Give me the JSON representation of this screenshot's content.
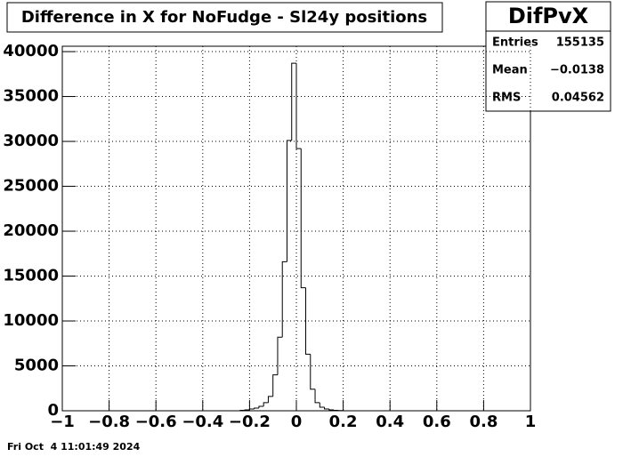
{
  "chart_data": {
    "type": "histogram",
    "title": "Difference in X for NoFudge - Sl24y positions",
    "bins": [
      -0.24,
      -0.22,
      -0.2,
      -0.18,
      -0.16,
      -0.14,
      -0.12,
      -0.1,
      -0.08,
      -0.06,
      -0.04,
      -0.02,
      0,
      0.02,
      0.04,
      0.06,
      0.08,
      0.1,
      0.12,
      0.14,
      0.16,
      0.18,
      0.2
    ],
    "values": [
      50,
      100,
      200,
      300,
      500,
      900,
      1600,
      4000,
      8200,
      16600,
      30100,
      38700,
      29200,
      13700,
      6300,
      2400,
      900,
      400,
      200,
      100,
      50,
      30
    ],
    "color": "#000000",
    "xlim": [
      -1,
      1
    ],
    "xticks": [
      {
        "value": -1,
        "label": "−1"
      },
      {
        "value": -0.8,
        "label": "−0.8"
      },
      {
        "value": -0.6,
        "label": "−0.6"
      },
      {
        "value": -0.4,
        "label": "−0.4"
      },
      {
        "value": -0.2,
        "label": "−0.2"
      },
      0,
      0.2,
      0.4,
      0.6,
      0.8,
      1
    ],
    "ylim": [
      0,
      40600
    ],
    "yticks": [
      0,
      5000,
      10000,
      15000,
      20000,
      25000,
      30000,
      35000,
      40000
    ],
    "grid": true,
    "stats_box": {
      "title": "DifPvX",
      "rows": [
        {
          "label": "Entries",
          "value": "155135"
        },
        {
          "label": "Mean",
          "value": "−0.0138"
        },
        {
          "label": "RMS",
          "value": "0.04562"
        }
      ]
    },
    "timestamp": "Fri Oct  4 11:01:49 2024"
  }
}
